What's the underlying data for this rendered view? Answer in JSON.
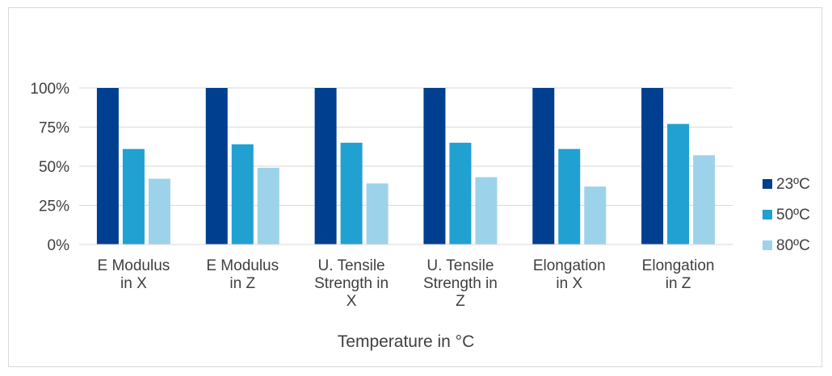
{
  "chart_data": {
    "type": "bar",
    "title": "",
    "xlabel": "Temperature in °C",
    "ylabel": "",
    "ylim": [
      0,
      100
    ],
    "yticks": [
      "0%",
      "25%",
      "50%",
      "75%",
      "100%"
    ],
    "ytick_values": [
      0,
      25,
      50,
      75,
      100
    ],
    "categories": [
      [
        "E Modulus",
        "in X"
      ],
      [
        "E Modulus",
        "in Z"
      ],
      [
        "U. Tensile",
        "Strength in",
        "X"
      ],
      [
        "U. Tensile",
        "Strength in",
        "Z"
      ],
      [
        "Elongation",
        "in X"
      ],
      [
        "Elongation",
        "in Z"
      ]
    ],
    "series": [
      {
        "name": "23ºC",
        "color": "#003f8f",
        "values": [
          100,
          100,
          100,
          100,
          100,
          100
        ]
      },
      {
        "name": "50ºC",
        "color": "#21a0d2",
        "values": [
          61,
          64,
          65,
          65,
          61,
          77
        ]
      },
      {
        "name": "80ºC",
        "color": "#9dd3ea",
        "values": [
          42,
          49,
          39,
          43,
          37,
          57
        ]
      }
    ],
    "grid": true,
    "legend": "right"
  }
}
